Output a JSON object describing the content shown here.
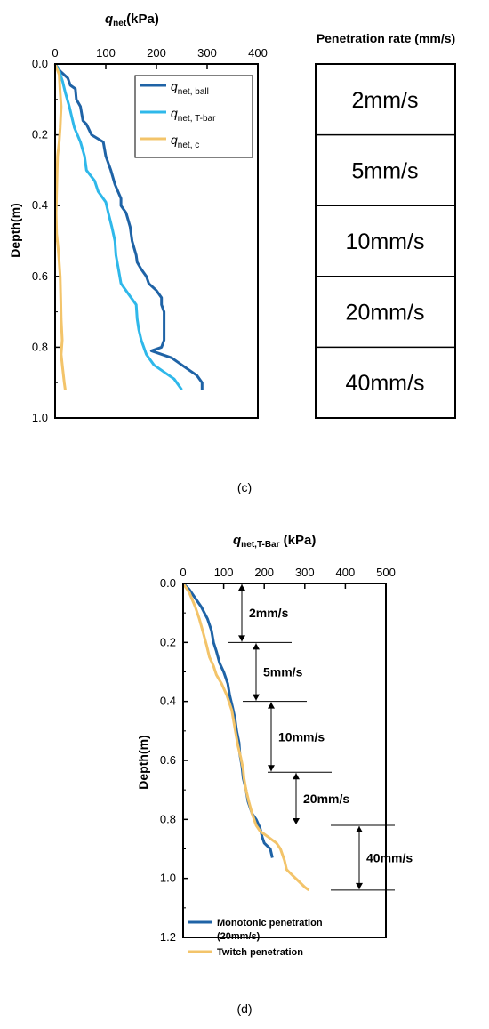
{
  "chart_data": [
    {
      "type": "line",
      "panel_label": "(c)",
      "xlabel_italic": "q",
      "xlabel_sub": "net",
      "xlabel_rest": "(kPa)",
      "ylabel": "Depth(m)",
      "xlim": [
        0,
        400
      ],
      "ylim": [
        0,
        1.0
      ],
      "y_inverted": true,
      "x_axis_position": "top",
      "xticks": [
        0,
        100,
        200,
        300,
        400
      ],
      "yticks": [
        "0.0",
        "0.2",
        "0.4",
        "0.6",
        "0.8",
        "1.0"
      ],
      "legend_position": "top-right",
      "series": [
        {
          "name_italic": "q",
          "name_sub": "net, ball",
          "color": "#1f63a6",
          "points": [
            [
              0,
              0.0
            ],
            [
              10,
              0.02
            ],
            [
              25,
              0.04
            ],
            [
              30,
              0.06
            ],
            [
              40,
              0.07
            ],
            [
              42,
              0.1
            ],
            [
              50,
              0.12
            ],
            [
              55,
              0.16
            ],
            [
              62,
              0.17
            ],
            [
              72,
              0.2
            ],
            [
              95,
              0.22
            ],
            [
              100,
              0.26
            ],
            [
              110,
              0.3
            ],
            [
              118,
              0.34
            ],
            [
              130,
              0.38
            ],
            [
              130,
              0.4
            ],
            [
              140,
              0.42
            ],
            [
              148,
              0.46
            ],
            [
              152,
              0.5
            ],
            [
              160,
              0.54
            ],
            [
              162,
              0.56
            ],
            [
              170,
              0.58
            ],
            [
              180,
              0.6
            ],
            [
              185,
              0.62
            ],
            [
              200,
              0.64
            ],
            [
              210,
              0.66
            ],
            [
              210,
              0.68
            ],
            [
              215,
              0.7
            ],
            [
              215,
              0.74
            ],
            [
              215,
              0.78
            ],
            [
              210,
              0.8
            ],
            [
              190,
              0.81
            ],
            [
              230,
              0.83
            ],
            [
              260,
              0.86
            ],
            [
              280,
              0.88
            ],
            [
              290,
              0.9
            ],
            [
              290,
              0.92
            ]
          ]
        },
        {
          "name_italic": "q",
          "name_sub": "net, T-bar",
          "color": "#2fb8ea",
          "points": [
            [
              0,
              0.0
            ],
            [
              8,
              0.02
            ],
            [
              15,
              0.05
            ],
            [
              20,
              0.08
            ],
            [
              28,
              0.12
            ],
            [
              33,
              0.15
            ],
            [
              38,
              0.18
            ],
            [
              50,
              0.22
            ],
            [
              58,
              0.26
            ],
            [
              62,
              0.3
            ],
            [
              78,
              0.33
            ],
            [
              85,
              0.36
            ],
            [
              100,
              0.39
            ],
            [
              105,
              0.42
            ],
            [
              112,
              0.46
            ],
            [
              118,
              0.5
            ],
            [
              120,
              0.54
            ],
            [
              125,
              0.58
            ],
            [
              130,
              0.62
            ],
            [
              145,
              0.65
            ],
            [
              160,
              0.68
            ],
            [
              162,
              0.72
            ],
            [
              165,
              0.75
            ],
            [
              170,
              0.78
            ],
            [
              180,
              0.82
            ],
            [
              195,
              0.85
            ],
            [
              215,
              0.87
            ],
            [
              235,
              0.89
            ],
            [
              245,
              0.91
            ],
            [
              250,
              0.92
            ]
          ]
        },
        {
          "name_italic": "q",
          "name_sub": "net, c",
          "color": "#f3c46a",
          "points": [
            [
              0,
              0.0
            ],
            [
              8,
              0.03
            ],
            [
              10,
              0.08
            ],
            [
              12,
              0.12
            ],
            [
              10,
              0.18
            ],
            [
              8,
              0.22
            ],
            [
              5,
              0.26
            ],
            [
              4,
              0.3
            ],
            [
              3,
              0.36
            ],
            [
              2,
              0.42
            ],
            [
              3,
              0.48
            ],
            [
              6,
              0.52
            ],
            [
              8,
              0.56
            ],
            [
              10,
              0.6
            ],
            [
              11,
              0.66
            ],
            [
              12,
              0.72
            ],
            [
              14,
              0.78
            ],
            [
              12,
              0.82
            ],
            [
              15,
              0.86
            ],
            [
              18,
              0.9
            ],
            [
              20,
              0.92
            ]
          ]
        }
      ]
    },
    {
      "type": "table",
      "title": "Penetration rate (mm/s)",
      "rows": [
        "2mm/s",
        "5mm/s",
        "10mm/s",
        "20mm/s",
        "40mm/s"
      ]
    },
    {
      "type": "line",
      "panel_label": "(d)",
      "xlabel_italic": "q",
      "xlabel_sub": "net,T-Bar",
      "xlabel_rest": " (kPa)",
      "ylabel": "Depth(m)",
      "xlim": [
        0,
        500
      ],
      "ylim": [
        0,
        1.2
      ],
      "y_inverted": true,
      "x_axis_position": "top",
      "xticks": [
        0,
        100,
        200,
        300,
        400,
        500
      ],
      "yticks": [
        "0.0",
        "0.2",
        "0.4",
        "0.6",
        "0.8",
        "1.0",
        "1.2"
      ],
      "legend_position": "bottom-left",
      "series": [
        {
          "name": "Monotonic penetration",
          "name_line2": "(20mm/s)",
          "color": "#1f63a6",
          "points": [
            [
              0,
              0.0
            ],
            [
              15,
              0.02
            ],
            [
              30,
              0.05
            ],
            [
              45,
              0.08
            ],
            [
              60,
              0.12
            ],
            [
              70,
              0.16
            ],
            [
              75,
              0.2
            ],
            [
              82,
              0.23
            ],
            [
              90,
              0.27
            ],
            [
              100,
              0.3
            ],
            [
              110,
              0.34
            ],
            [
              115,
              0.38
            ],
            [
              122,
              0.42
            ],
            [
              128,
              0.46
            ],
            [
              132,
              0.5
            ],
            [
              138,
              0.54
            ],
            [
              140,
              0.58
            ],
            [
              145,
              0.62
            ],
            [
              148,
              0.66
            ],
            [
              155,
              0.7
            ],
            [
              160,
              0.74
            ],
            [
              170,
              0.78
            ],
            [
              180,
              0.8
            ],
            [
              190,
              0.83
            ],
            [
              195,
              0.86
            ],
            [
              200,
              0.88
            ],
            [
              215,
              0.9
            ],
            [
              220,
              0.93
            ]
          ]
        },
        {
          "name": "Twitch penetration",
          "color": "#f3c46a",
          "points": [
            [
              0,
              0.0
            ],
            [
              15,
              0.03
            ],
            [
              30,
              0.08
            ],
            [
              40,
              0.12
            ],
            [
              50,
              0.17
            ],
            [
              58,
              0.21
            ],
            [
              65,
              0.25
            ],
            [
              75,
              0.28
            ],
            [
              82,
              0.31
            ],
            [
              95,
              0.34
            ],
            [
              108,
              0.38
            ],
            [
              120,
              0.43
            ],
            [
              125,
              0.47
            ],
            [
              130,
              0.51
            ],
            [
              135,
              0.55
            ],
            [
              142,
              0.59
            ],
            [
              148,
              0.63
            ],
            [
              150,
              0.66
            ],
            [
              155,
              0.7
            ],
            [
              162,
              0.74
            ],
            [
              170,
              0.78
            ],
            [
              180,
              0.82
            ],
            [
              190,
              0.84
            ],
            [
              210,
              0.86
            ],
            [
              230,
              0.88
            ],
            [
              240,
              0.9
            ],
            [
              250,
              0.94
            ],
            [
              255,
              0.97
            ],
            [
              270,
              0.99
            ],
            [
              285,
              1.01
            ],
            [
              300,
              1.03
            ],
            [
              310,
              1.04
            ]
          ]
        }
      ],
      "annotations": [
        {
          "text": "2mm/s",
          "from": 0.0,
          "to": 0.2
        },
        {
          "text": "5mm/s",
          "from": 0.2,
          "to": 0.4
        },
        {
          "text": "10mm/s",
          "from": 0.4,
          "to": 0.64
        },
        {
          "text": "20mm/s",
          "from": 0.64,
          "to": 0.82
        },
        {
          "text": "40mm/s",
          "from": 0.82,
          "to": 1.04
        }
      ]
    }
  ]
}
